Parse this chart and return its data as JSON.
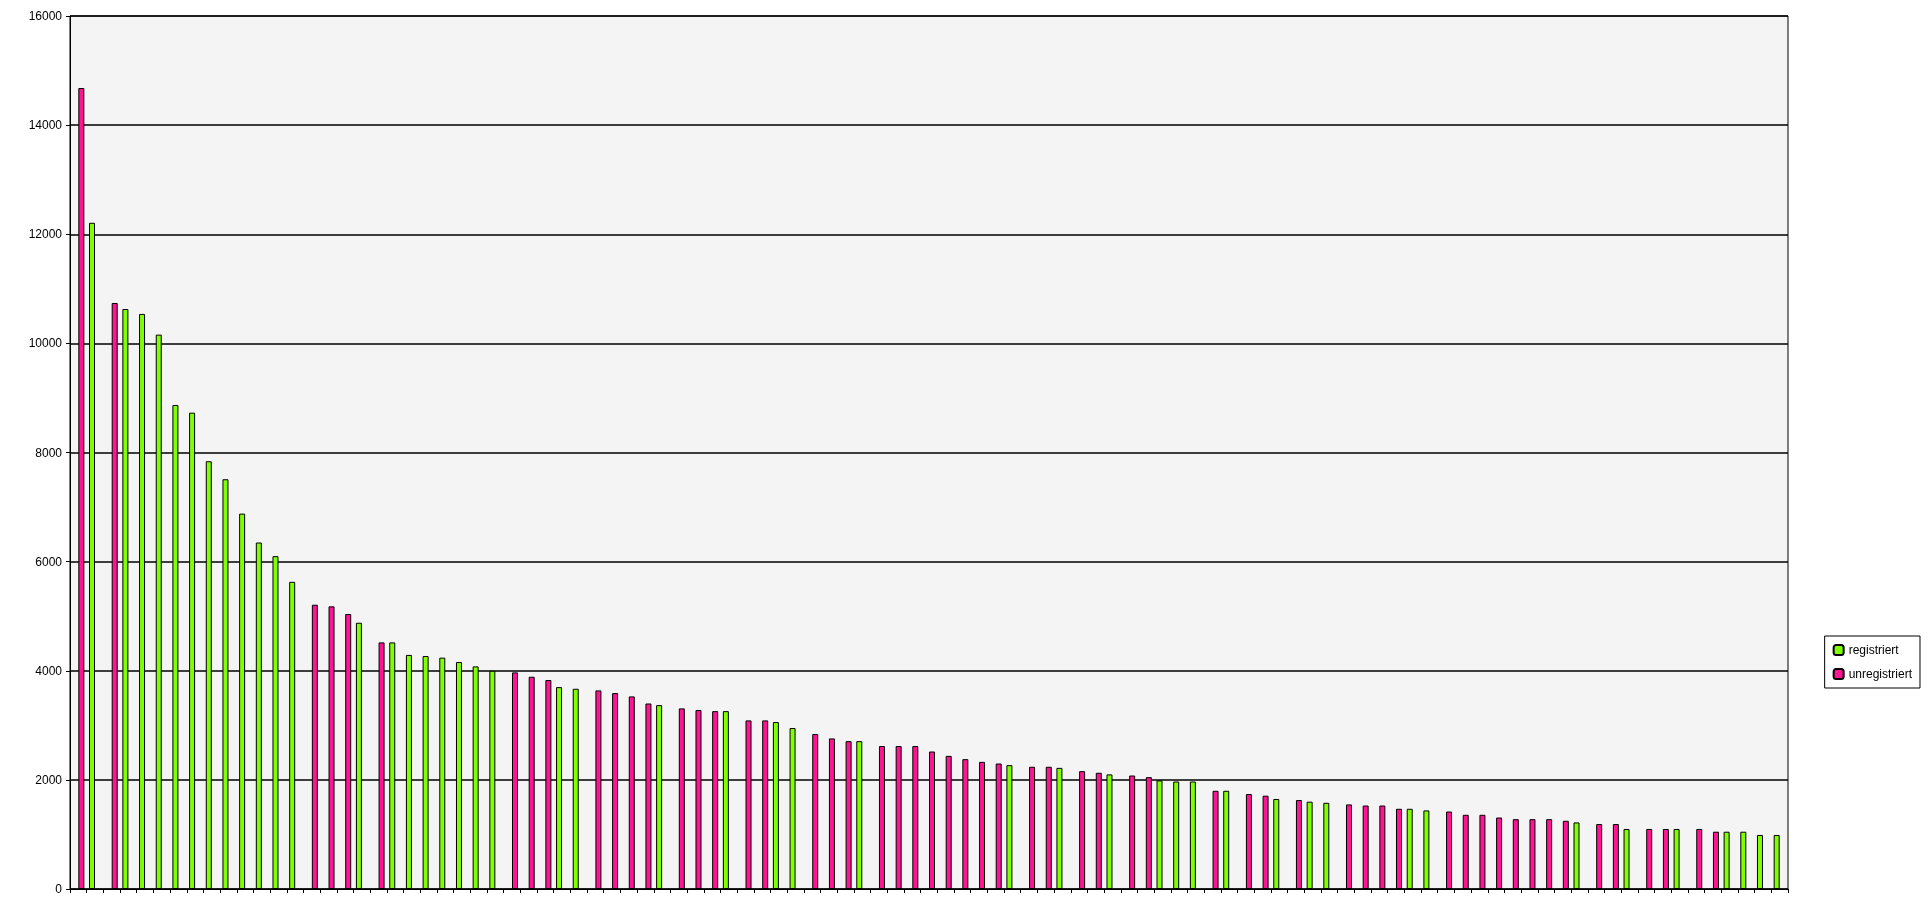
{
  "chart_data": {
    "type": "bar",
    "categories": [
      null,
      null,
      null,
      null,
      null,
      null,
      null,
      null,
      null,
      null,
      null,
      null,
      null,
      null,
      null,
      null,
      null,
      null,
      null,
      null,
      null,
      null,
      null,
      null,
      null,
      null,
      null,
      null,
      null,
      null,
      null,
      null,
      null,
      null,
      null,
      null,
      null,
      null,
      null,
      null,
      null,
      null,
      null,
      null,
      null,
      null,
      null,
      null,
      null,
      null,
      null,
      null,
      null,
      null,
      null,
      null,
      null,
      null,
      null,
      null,
      null,
      null,
      null,
      null,
      null,
      null,
      null,
      null,
      null,
      null,
      null,
      null,
      null,
      null,
      null,
      null,
      null,
      null,
      null,
      null,
      null,
      null,
      null,
      null,
      null,
      null,
      null,
      null,
      null,
      null,
      null,
      null,
      null,
      null,
      null,
      null,
      null,
      null,
      null,
      null,
      null,
      null,
      null
    ],
    "series": [
      {
        "name": "registriert",
        "color": "#80ff00",
        "values": [
          null,
          12210,
          null,
          10630,
          10540,
          10160,
          8870,
          8730,
          7840,
          7510,
          6880,
          6350,
          6100,
          5630,
          null,
          null,
          null,
          4880,
          null,
          4520,
          4290,
          4270,
          4240,
          4160,
          4080,
          4000,
          null,
          null,
          null,
          3700,
          3670,
          null,
          null,
          null,
          null,
          3370,
          null,
          null,
          null,
          3260,
          null,
          null,
          3060,
          2950,
          null,
          null,
          null,
          2710,
          null,
          null,
          null,
          null,
          null,
          null,
          null,
          null,
          2270,
          null,
          null,
          2220,
          null,
          null,
          2100,
          null,
          null,
          1990,
          1970,
          1970,
          null,
          1800,
          null,
          null,
          1650,
          null,
          1600,
          1580,
          null,
          null,
          null,
          null,
          1470,
          1440,
          null,
          null,
          null,
          null,
          null,
          null,
          null,
          null,
          1220,
          null,
          null,
          1100,
          null,
          null,
          1100,
          null,
          null,
          1050,
          1050,
          990,
          990
        ]
      },
      {
        "name": "unregistriert",
        "color": "#ff1493",
        "values": [
          14680,
          null,
          10740,
          null,
          null,
          null,
          null,
          null,
          null,
          null,
          null,
          null,
          null,
          null,
          5210,
          5180,
          5040,
          null,
          4520,
          null,
          null,
          null,
          null,
          null,
          null,
          null,
          3970,
          3890,
          3830,
          null,
          null,
          3640,
          3590,
          3530,
          3400,
          null,
          3310,
          3280,
          3260,
          null,
          3090,
          3090,
          null,
          null,
          2840,
          2760,
          2710,
          null,
          2620,
          2620,
          2620,
          2520,
          2440,
          2380,
          2330,
          2300,
          null,
          2240,
          2240,
          null,
          2160,
          2130,
          null,
          2080,
          2050,
          null,
          null,
          null,
          1800,
          null,
          1740,
          1710,
          null,
          1630,
          null,
          null,
          1550,
          1530,
          1530,
          1470,
          null,
          null,
          1420,
          1360,
          1360,
          1310,
          1280,
          1280,
          1280,
          1250,
          null,
          1190,
          1190,
          null,
          1100,
          1100,
          null,
          1100,
          1050,
          null,
          null,
          null,
          null
        ]
      }
    ],
    "ylim": [
      0,
      16000
    ],
    "yticks": [
      0,
      2000,
      4000,
      6000,
      8000,
      10000,
      12000,
      14000,
      16000
    ],
    "grid": "y",
    "legend": "right"
  }
}
